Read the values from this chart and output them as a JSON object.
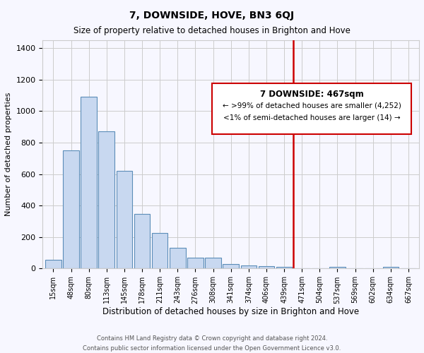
{
  "title": "7, DOWNSIDE, HOVE, BN3 6QJ",
  "subtitle": "Size of property relative to detached houses in Brighton and Hove",
  "xlabel": "Distribution of detached houses by size in Brighton and Hove",
  "ylabel": "Number of detached properties",
  "footnote1": "Contains HM Land Registry data © Crown copyright and database right 2024.",
  "footnote2": "Contains public sector information licensed under the Open Government Licence v3.0.",
  "bin_labels": [
    "15sqm",
    "48sqm",
    "80sqm",
    "113sqm",
    "145sqm",
    "178sqm",
    "211sqm",
    "243sqm",
    "276sqm",
    "308sqm",
    "341sqm",
    "374sqm",
    "406sqm",
    "439sqm",
    "471sqm",
    "504sqm",
    "537sqm",
    "569sqm",
    "602sqm",
    "634sqm",
    "667sqm"
  ],
  "bar_values": [
    55,
    750,
    1090,
    870,
    620,
    345,
    225,
    130,
    70,
    70,
    28,
    20,
    15,
    12,
    0,
    0,
    12,
    0,
    0,
    12,
    0
  ],
  "bar_color": "#c8d8f0",
  "bar_edgecolor": "#5b8db8",
  "highlight_bin_index": 14,
  "highlight_color": "#cc0000",
  "annotation_title": "7 DOWNSIDE: 467sqm",
  "annotation_line1": "← >99% of detached houses are smaller (4,252)",
  "annotation_line2": "<1% of semi-detached houses are larger (14) →",
  "annotation_box_color": "#cc0000",
  "ylim": [
    0,
    1450
  ],
  "yticks": [
    0,
    200,
    400,
    600,
    800,
    1000,
    1200,
    1400
  ],
  "background_color": "#f7f7ff",
  "grid_color": "#cccccc"
}
